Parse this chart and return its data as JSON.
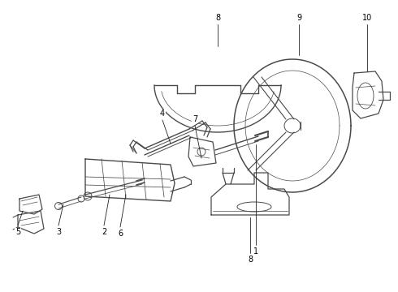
{
  "bg_color": "#ffffff",
  "line_color": "#4a4a4a",
  "figsize": [
    4.9,
    3.6
  ],
  "dpi": 100,
  "lw_main": 0.9,
  "lw_thin": 0.55
}
